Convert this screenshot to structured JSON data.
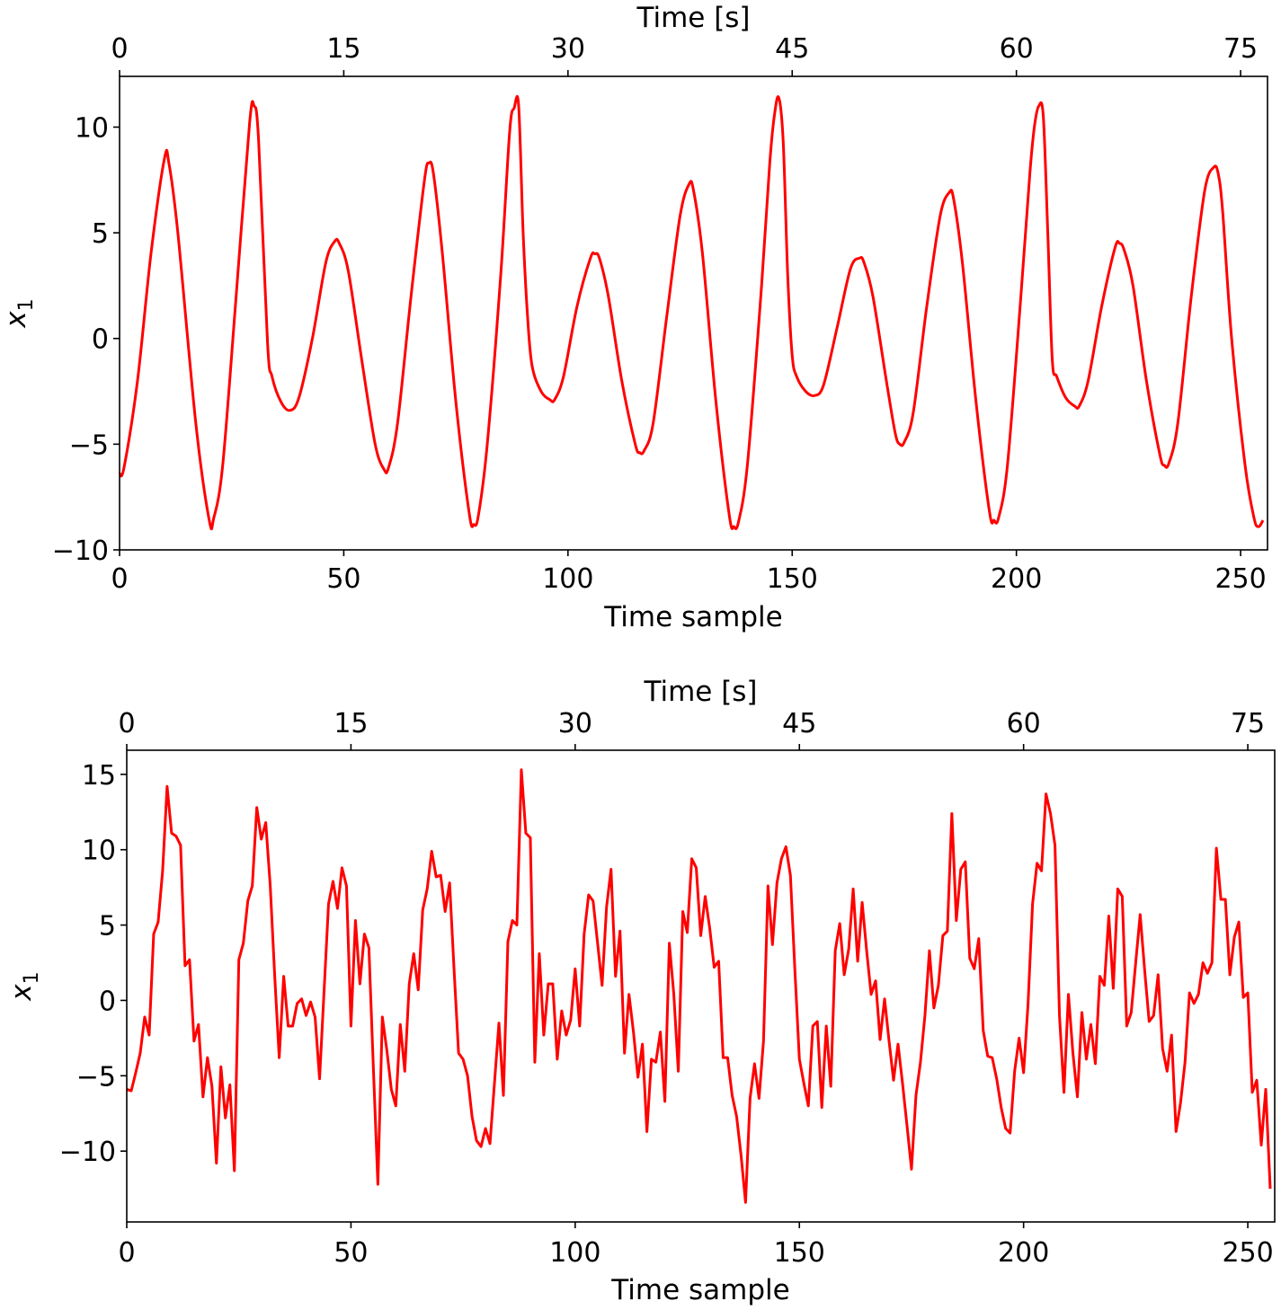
{
  "chart_data": [
    {
      "type": "line",
      "xlabel": "Time sample",
      "ylabel": "x",
      "ylabel_subscript": "1",
      "top_xlabel": "Time [s]",
      "xlim": [
        0,
        256
      ],
      "ylim": [
        -10.0,
        12.4
      ],
      "top_xlim": [
        0,
        76.8
      ],
      "x_ticks": [
        0,
        50,
        100,
        150,
        200,
        250
      ],
      "top_x_ticks": [
        0,
        15,
        30,
        45,
        60,
        75
      ],
      "y_ticks": [
        -10,
        -5,
        0,
        5,
        10
      ],
      "grid": false,
      "line_color": "#ff0000",
      "points": [
        [
          0,
          -6.4
        ],
        [
          1,
          -6.1
        ],
        [
          4,
          -2
        ],
        [
          7,
          4
        ],
        [
          10,
          8.5
        ],
        [
          11,
          8.3
        ],
        [
          13,
          5
        ],
        [
          17,
          -4
        ],
        [
          20,
          -8.6
        ],
        [
          21,
          -8.5
        ],
        [
          23,
          -6
        ],
        [
          26,
          2
        ],
        [
          29,
          10.2
        ],
        [
          30,
          11.0
        ],
        [
          31,
          9.4
        ],
        [
          33,
          -0.2
        ],
        [
          34,
          -1.8
        ],
        [
          36,
          -3.0
        ],
        [
          38,
          -3.4
        ],
        [
          40,
          -2.8
        ],
        [
          43,
          0
        ],
        [
          46,
          3.6
        ],
        [
          48,
          4.6
        ],
        [
          49,
          4.5
        ],
        [
          51,
          3.2
        ],
        [
          54,
          -1
        ],
        [
          57,
          -5
        ],
        [
          59,
          -6.2
        ],
        [
          60,
          -6.1
        ],
        [
          62,
          -4
        ],
        [
          65,
          2
        ],
        [
          68,
          7.5
        ],
        [
          69,
          8.3
        ],
        [
          70,
          7.8
        ],
        [
          72,
          4
        ],
        [
          75,
          -3
        ],
        [
          78,
          -8.3
        ],
        [
          79,
          -8.8
        ],
        [
          80,
          -8.4
        ],
        [
          82,
          -5
        ],
        [
          85,
          3
        ],
        [
          87,
          9.8
        ],
        [
          88,
          10.9
        ],
        [
          89,
          11.0
        ],
        [
          90,
          5
        ],
        [
          91,
          1
        ],
        [
          92,
          -1.3
        ],
        [
          94,
          -2.5
        ],
        [
          96,
          -2.9
        ],
        [
          97,
          -2.9
        ],
        [
          99,
          -1.8
        ],
        [
          102,
          1.5
        ],
        [
          105,
          3.8
        ],
        [
          106,
          4.0
        ],
        [
          107,
          3.8
        ],
        [
          109,
          2
        ],
        [
          112,
          -2
        ],
        [
          115,
          -5
        ],
        [
          116,
          -5.4
        ],
        [
          117,
          -5.3
        ],
        [
          119,
          -4
        ],
        [
          122,
          1
        ],
        [
          125,
          5.8
        ],
        [
          127,
          7.3
        ],
        [
          128,
          7.0
        ],
        [
          130,
          4
        ],
        [
          133,
          -3
        ],
        [
          136,
          -8.4
        ],
        [
          137,
          -8.9
        ],
        [
          138,
          -8.7
        ],
        [
          140,
          -6
        ],
        [
          143,
          2
        ],
        [
          145,
          8.3
        ],
        [
          146,
          10.5
        ],
        [
          147,
          11.4
        ],
        [
          148,
          9.3
        ],
        [
          149,
          3
        ],
        [
          150,
          -0.8
        ],
        [
          151,
          -1.8
        ],
        [
          153,
          -2.5
        ],
        [
          155,
          -2.7
        ],
        [
          157,
          -2.2
        ],
        [
          160,
          0.5
        ],
        [
          163,
          3.3
        ],
        [
          165,
          3.8
        ],
        [
          166,
          3.6
        ],
        [
          168,
          2
        ],
        [
          171,
          -2
        ],
        [
          173,
          -4.5
        ],
        [
          174,
          -5.0
        ],
        [
          175,
          -4.9
        ],
        [
          177,
          -3.5
        ],
        [
          180,
          1.5
        ],
        [
          183,
          5.8
        ],
        [
          185,
          6.9
        ],
        [
          186,
          6.6
        ],
        [
          188,
          3.5
        ],
        [
          191,
          -3
        ],
        [
          194,
          -8.2
        ],
        [
          195,
          -8.6
        ],
        [
          196,
          -8.5
        ],
        [
          198,
          -6
        ],
        [
          201,
          2
        ],
        [
          203,
          7.8
        ],
        [
          204,
          10
        ],
        [
          205,
          11.0
        ],
        [
          206,
          10.5
        ],
        [
          207,
          5
        ],
        [
          208,
          -1.0
        ],
        [
          209,
          -1.8
        ],
        [
          211,
          -2.8
        ],
        [
          213,
          -3.2
        ],
        [
          214,
          -3.2
        ],
        [
          216,
          -2
        ],
        [
          219,
          1.5
        ],
        [
          222,
          4.3
        ],
        [
          223,
          4.5
        ],
        [
          224,
          4.2
        ],
        [
          226,
          2.5
        ],
        [
          229,
          -2
        ],
        [
          232,
          -5.5
        ],
        [
          233,
          -6.0
        ],
        [
          234,
          -5.9
        ],
        [
          236,
          -4
        ],
        [
          239,
          2
        ],
        [
          242,
          7.0
        ],
        [
          244,
          8.1
        ],
        [
          245,
          7.8
        ],
        [
          246,
          6
        ],
        [
          248,
          0
        ],
        [
          251,
          -6
        ],
        [
          253,
          -8.5
        ],
        [
          254,
          -8.9
        ],
        [
          255,
          -8.6
        ]
      ]
    },
    {
      "type": "line",
      "xlabel": "Time sample",
      "ylabel": "x",
      "ylabel_subscript": "1",
      "top_xlabel": "Time [s]",
      "xlim": [
        0,
        256
      ],
      "ylim": [
        -14.7,
        16.6
      ],
      "top_xlim": [
        0,
        76.8
      ],
      "x_ticks": [
        0,
        50,
        100,
        150,
        200,
        250
      ],
      "top_x_ticks": [
        0,
        15,
        30,
        45,
        60,
        75
      ],
      "y_ticks": [
        -10,
        -5,
        0,
        5,
        10,
        15
      ],
      "grid": false,
      "line_color": "#ff0000",
      "values": [
        -5.9,
        -6.0,
        -4.8,
        -3.5,
        -1.1,
        -2.3,
        4.4,
        5.2,
        8.6,
        14.2,
        11.1,
        10.9,
        10.3,
        2.3,
        2.7,
        -2.7,
        -1.6,
        -6.4,
        -3.8,
        -5.7,
        -10.8,
        -4.4,
        -7.8,
        -5.6,
        -11.3,
        2.7,
        3.8,
        6.6,
        7.6,
        12.8,
        10.7,
        11.8,
        7.6,
        1.6,
        -3.8,
        1.6,
        -1.7,
        -1.7,
        -0.2,
        0.1,
        -1.0,
        -0.1,
        -1.1,
        -5.2,
        0.6,
        6.4,
        7.9,
        6.1,
        8.8,
        7.6,
        -1.7,
        5.3,
        1.1,
        4.4,
        3.5,
        -4.5,
        -12.2,
        -1.1,
        -3.3,
        -5.9,
        -7.0,
        -1.6,
        -4.7,
        1.1,
        3.1,
        0.7,
        6.0,
        7.4,
        9.9,
        8.2,
        8.3,
        5.9,
        7.8,
        2.0,
        -3.5,
        -3.9,
        -5.0,
        -7.7,
        -9.3,
        -9.7,
        -8.5,
        -9.5,
        -5.5,
        -1.5,
        -6.3,
        3.9,
        5.3,
        5.0,
        15.3,
        11.1,
        10.8,
        -4.1,
        3.1,
        -2.3,
        1.1,
        1.1,
        -3.9,
        -0.7,
        -2.3,
        -1.3,
        2.1,
        -1.7,
        4.4,
        7.0,
        6.6,
        3.8,
        1.0,
        6.2,
        8.7,
        1.6,
        4.6,
        -3.5,
        0.4,
        -2.1,
        -5.1,
        -2.9,
        -8.7,
        -3.9,
        -4.1,
        -2.1,
        -6.7,
        3.8,
        0.4,
        -4.7,
        5.9,
        4.5,
        9.4,
        8.8,
        4.3,
        6.9,
        4.8,
        2.2,
        2.6,
        -3.8,
        -3.8,
        -6.3,
        -7.7,
        -10.3,
        -13.4,
        -6.5,
        -4.2,
        -6.5,
        -2.7,
        7.6,
        3.7,
        7.8,
        9.4,
        10.2,
        8.3,
        2.0,
        -3.9,
        -5.5,
        -7.0,
        -1.7,
        -1.4,
        -7.1,
        -1.7,
        -5.7,
        3.3,
        5.1,
        1.7,
        3.4,
        7.4,
        2.6,
        6.5,
        3.3,
        0.4,
        1.3,
        -2.6,
        0.1,
        -2.7,
        -5.3,
        -2.9,
        -5.5,
        -8.3,
        -11.2,
        -6.3,
        -4.1,
        -1.0,
        3.3,
        -0.5,
        1.0,
        4.3,
        4.6,
        12.4,
        5.3,
        8.7,
        9.2,
        2.8,
        2.1,
        4.1,
        -2.0,
        -3.7,
        -3.8,
        -5.2,
        -7.1,
        -8.5,
        -8.8,
        -4.7,
        -2.5,
        -4.8,
        -0.2,
        6.4,
        9.1,
        8.6,
        13.7,
        12.4,
        10.3,
        -1.0,
        -6.1,
        0.4,
        -3.5,
        -6.4,
        -0.8,
        -3.9,
        -1.6,
        -4.2,
        1.6,
        1.0,
        5.6,
        0.8,
        7.4,
        6.9,
        -1.7,
        -0.8,
        2.5,
        5.7,
        2.0,
        -1.4,
        -1.0,
        1.7,
        -3.2,
        -4.7,
        -2.3,
        -8.7,
        -6.8,
        -4.1,
        0.5,
        -0.2,
        0.4,
        2.5,
        1.8,
        2.5,
        10.1,
        6.7,
        6.7,
        1.7,
        4.2,
        5.2,
        0.2,
        0.5,
        -6.1,
        -5.3,
        -9.6,
        -5.9,
        -12.5
      ]
    }
  ]
}
